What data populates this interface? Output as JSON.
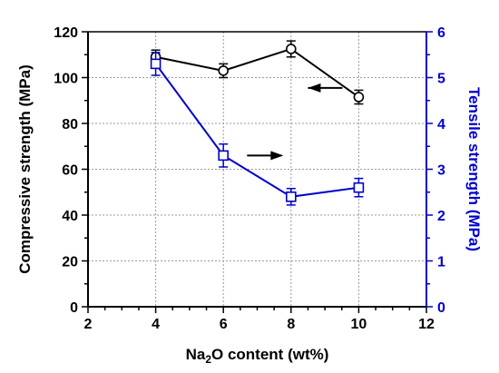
{
  "chart_data": {
    "type": "line",
    "x_axis": {
      "label_parts": [
        "Na",
        "2",
        "O content (wt%)"
      ],
      "range": [
        2,
        12
      ],
      "ticks": [
        2,
        4,
        6,
        8,
        10,
        12
      ],
      "tick_labels": [
        "2",
        "4",
        "6",
        "8",
        "10",
        "12"
      ]
    },
    "y_left": {
      "label": "Compressive strength (MPa)",
      "range": [
        0,
        120
      ],
      "ticks": [
        0,
        20,
        40,
        60,
        80,
        100,
        120
      ],
      "tick_labels": [
        "0",
        "20",
        "40",
        "60",
        "80",
        "100",
        "120"
      ],
      "color": "#000000"
    },
    "y_right": {
      "label": "Tensile strength (MPa)",
      "range": [
        0,
        6
      ],
      "ticks": [
        0,
        1,
        2,
        3,
        4,
        5,
        6
      ],
      "tick_labels": [
        "0",
        "1",
        "2",
        "3",
        "4",
        "5",
        "6"
      ],
      "color": "#0000cc"
    },
    "grid": true,
    "series": [
      {
        "axis": "left",
        "marker": "circle",
        "color": "#000000",
        "x": [
          4,
          6,
          8,
          10
        ],
        "y": [
          109,
          103,
          112.5,
          91.5
        ],
        "error": [
          3,
          3,
          3.5,
          3
        ],
        "direction_arrow": "left"
      },
      {
        "axis": "right",
        "marker": "square",
        "color": "#0000cc",
        "x": [
          4,
          6,
          8,
          10
        ],
        "y": [
          5.3,
          3.3,
          2.4,
          2.6
        ],
        "error": [
          0.25,
          0.25,
          0.18,
          0.2
        ],
        "direction_arrow": "right"
      }
    ]
  }
}
